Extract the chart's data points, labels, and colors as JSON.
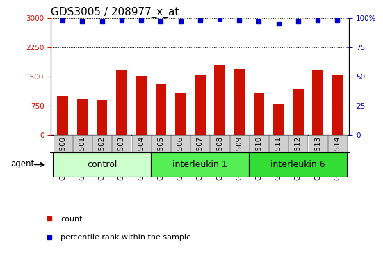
{
  "title": "GDS3005 / 208977_x_at",
  "categories": [
    "GSM211500",
    "GSM211501",
    "GSM211502",
    "GSM211503",
    "GSM211504",
    "GSM211505",
    "GSM211506",
    "GSM211507",
    "GSM211508",
    "GSM211509",
    "GSM211510",
    "GSM211511",
    "GSM211512",
    "GSM211513",
    "GSM211514"
  ],
  "counts": [
    1000,
    930,
    900,
    1650,
    1520,
    1320,
    1080,
    1530,
    1780,
    1700,
    1070,
    780,
    1180,
    1650,
    1530
  ],
  "percentile_ranks": [
    98,
    97,
    97,
    98,
    98,
    97,
    97,
    98,
    99,
    98,
    97,
    95,
    97,
    98,
    98
  ],
  "bar_color": "#CC1100",
  "dot_color": "#0000CC",
  "left_ylim": [
    0,
    3000
  ],
  "right_ylim": [
    0,
    100
  ],
  "left_yticks": [
    0,
    750,
    1500,
    2250,
    3000
  ],
  "right_yticks": [
    0,
    25,
    50,
    75,
    100
  ],
  "right_yticklabels": [
    "0",
    "25",
    "50",
    "75",
    "100%"
  ],
  "groups": [
    {
      "label": "control",
      "start": 0,
      "end": 5,
      "color": "#CCFFCC"
    },
    {
      "label": "interleukin 1",
      "start": 5,
      "end": 10,
      "color": "#55EE55"
    },
    {
      "label": "interleukin 6",
      "start": 10,
      "end": 15,
      "color": "#33DD33"
    }
  ],
  "agent_label": "agent",
  "legend_items": [
    {
      "label": "count",
      "color": "#CC1100"
    },
    {
      "label": "percentile rank within the sample",
      "color": "#0000CC"
    }
  ],
  "plot_bg": "#FFFFFF",
  "title_fontsize": 11,
  "tick_fontsize": 7.5,
  "group_fontsize": 9,
  "label_fontsize": 8
}
